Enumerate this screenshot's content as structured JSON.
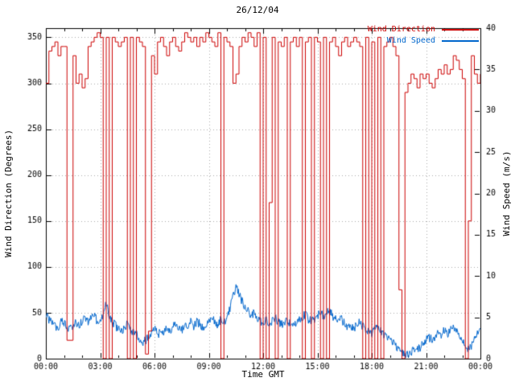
{
  "chart": {
    "title": "26/12/04",
    "xlabel": "Time GMT",
    "ylabel_left": "Wind Direction (Degrees)",
    "ylabel_right": "Wind Speed (m/s)"
  },
  "chart_data": {
    "type": "line",
    "title": "26/12/04",
    "xlabel": "Time GMT",
    "ylabel_left": "Wind Direction (Degrees)",
    "ylabel_right": "Wind Speed (m/s)",
    "grid": true,
    "legend_position": "top-right",
    "x": {
      "start_min": 0,
      "step_min": 10,
      "count": 145
    },
    "x_tick_minutes": [
      0,
      180,
      360,
      540,
      720,
      900,
      1080,
      1260,
      1440
    ],
    "x_tick_labels": [
      "00:00",
      "03:00",
      "06:00",
      "09:00",
      "12:00",
      "15:00",
      "18:00",
      "21:00",
      "00:00"
    ],
    "x_minor_step_min": 60,
    "left_axis": {
      "min": 0,
      "max": 360,
      "ticks": [
        0,
        50,
        100,
        150,
        200,
        250,
        300,
        350
      ]
    },
    "right_axis": {
      "min": 0,
      "max": 40,
      "ticks": [
        0,
        5,
        10,
        15,
        20,
        25,
        30,
        35,
        40
      ]
    },
    "colors": {
      "wind_direction": "#cc0000",
      "wind_speed": "#0066cc",
      "grid": "#aaaaaa",
      "frame": "#000000"
    },
    "series": [
      {
        "name": "Wind Direction",
        "axis": "left",
        "color": "#cc0000",
        "style": "steps",
        "values": [
          300,
          335,
          340,
          345,
          330,
          340,
          340,
          20,
          20,
          330,
          300,
          310,
          295,
          305,
          340,
          345,
          350,
          355,
          350,
          0,
          350,
          0,
          350,
          345,
          340,
          345,
          350,
          0,
          350,
          0,
          350,
          345,
          340,
          5,
          30,
          330,
          310,
          345,
          350,
          340,
          330,
          345,
          350,
          340,
          335,
          345,
          355,
          350,
          345,
          350,
          340,
          350,
          345,
          355,
          350,
          345,
          340,
          355,
          0,
          350,
          345,
          340,
          300,
          310,
          340,
          350,
          345,
          355,
          350,
          340,
          355,
          0,
          350,
          0,
          170,
          350,
          0,
          345,
          340,
          350,
          0,
          345,
          350,
          340,
          350,
          0,
          345,
          350,
          0,
          350,
          345,
          0,
          350,
          0,
          345,
          350,
          340,
          330,
          345,
          350,
          340,
          345,
          350,
          345,
          340,
          0,
          350,
          0,
          345,
          0,
          350,
          0,
          340,
          345,
          350,
          340,
          330,
          75,
          0,
          290,
          300,
          310,
          305,
          295,
          310,
          305,
          310,
          300,
          295,
          305,
          315,
          310,
          320,
          310,
          315,
          330,
          325,
          315,
          305,
          0,
          150,
          330,
          310,
          300,
          310
        ]
      },
      {
        "name": "Wind Speed",
        "axis": "right",
        "color": "#0066cc",
        "style": "line",
        "noise_amplitude": 1.1,
        "values": [
          5.5,
          4.8,
          4.2,
          4.0,
          3.8,
          4.5,
          4.2,
          3.9,
          3.6,
          4.0,
          4.4,
          4.1,
          4.6,
          5.0,
          4.4,
          4.8,
          5.2,
          4.6,
          4.2,
          5.5,
          6.8,
          5.0,
          4.4,
          4.0,
          3.6,
          3.4,
          3.8,
          4.2,
          3.6,
          3.2,
          3.0,
          2.4,
          1.8,
          2.2,
          2.8,
          3.2,
          3.6,
          3.2,
          2.9,
          3.3,
          3.7,
          3.4,
          3.8,
          4.2,
          3.9,
          3.5,
          3.8,
          4.1,
          4.4,
          4.0,
          4.5,
          4.2,
          3.8,
          4.3,
          4.6,
          5.0,
          4.4,
          4.1,
          4.7,
          4.3,
          5.0,
          6.0,
          7.5,
          8.6,
          7.8,
          6.9,
          6.4,
          5.8,
          5.2,
          5.6,
          5.0,
          4.6,
          4.4,
          4.8,
          4.2,
          4.6,
          5.0,
          4.4,
          4.0,
          4.4,
          4.8,
          4.2,
          3.8,
          4.2,
          4.6,
          5.0,
          5.4,
          4.8,
          4.4,
          4.9,
          5.2,
          5.6,
          5.0,
          5.4,
          5.8,
          5.2,
          4.8,
          4.4,
          4.8,
          4.2,
          3.8,
          4.0,
          3.6,
          4.0,
          4.4,
          4.0,
          3.6,
          3.3,
          3.0,
          3.4,
          3.8,
          3.4,
          3.0,
          2.6,
          2.4,
          2.0,
          1.6,
          1.2,
          0.8,
          0.6,
          0.5,
          0.8,
          1.2,
          0.9,
          1.4,
          1.8,
          2.2,
          2.6,
          2.2,
          2.8,
          3.2,
          2.8,
          3.4,
          3.0,
          3.4,
          3.8,
          3.4,
          2.8,
          2.4,
          1.8,
          1.2,
          1.6,
          2.4,
          3.2,
          4.0
        ]
      }
    ]
  }
}
